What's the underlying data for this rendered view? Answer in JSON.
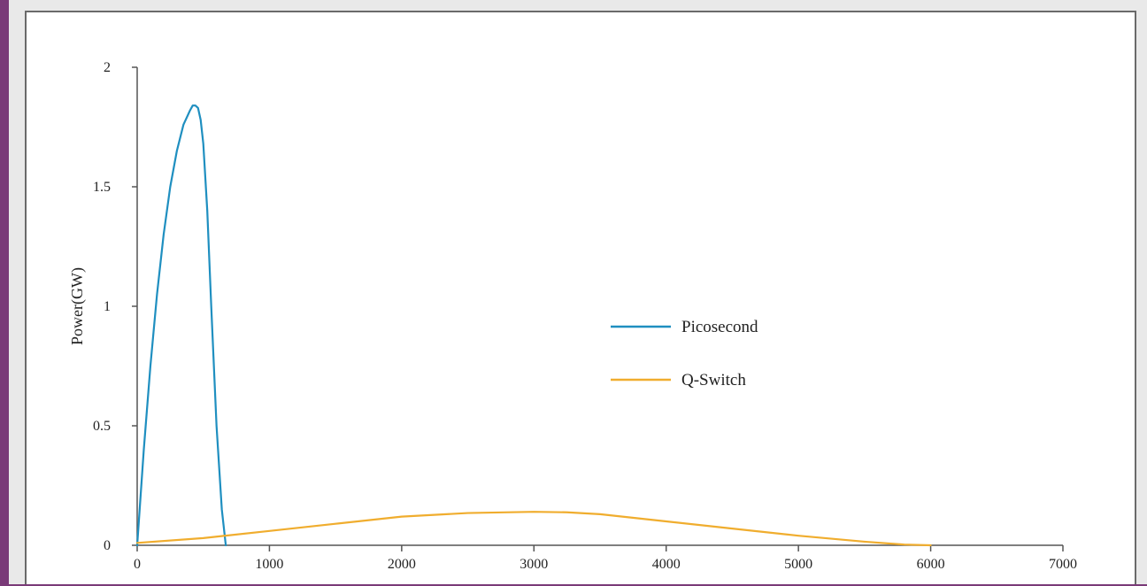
{
  "chart_data": {
    "type": "line",
    "title": "",
    "xlabel": "",
    "ylabel": "Power(GW)",
    "xlim": [
      0,
      7000
    ],
    "ylim": [
      0,
      2
    ],
    "x_ticks": [
      0,
      1000,
      2000,
      3000,
      4000,
      5000,
      6000,
      7000
    ],
    "y_ticks": [
      0,
      0.5,
      1,
      1.5,
      2
    ],
    "y_tick_labels": [
      "0",
      "0.5",
      "1",
      "1.5",
      "2"
    ],
    "grid": false,
    "legend_position": "center-right",
    "series": [
      {
        "name": "Picosecond",
        "color": "#1f8fc0",
        "x": [
          0,
          50,
          100,
          150,
          200,
          250,
          300,
          350,
          400,
          420,
          440,
          460,
          480,
          500,
          530,
          560,
          600,
          640,
          670
        ],
        "y": [
          0,
          0.4,
          0.75,
          1.05,
          1.3,
          1.5,
          1.65,
          1.76,
          1.82,
          1.84,
          1.84,
          1.83,
          1.78,
          1.68,
          1.4,
          1.0,
          0.5,
          0.15,
          0
        ]
      },
      {
        "name": "Q-Switch",
        "color": "#f0ad2e",
        "x": [
          0,
          500,
          1000,
          1500,
          2000,
          2500,
          3000,
          3250,
          3500,
          4000,
          4500,
          5000,
          5500,
          5800,
          6000
        ],
        "y": [
          0.01,
          0.03,
          0.06,
          0.09,
          0.12,
          0.135,
          0.14,
          0.138,
          0.13,
          0.1,
          0.07,
          0.04,
          0.015,
          0.003,
          0
        ]
      }
    ]
  }
}
